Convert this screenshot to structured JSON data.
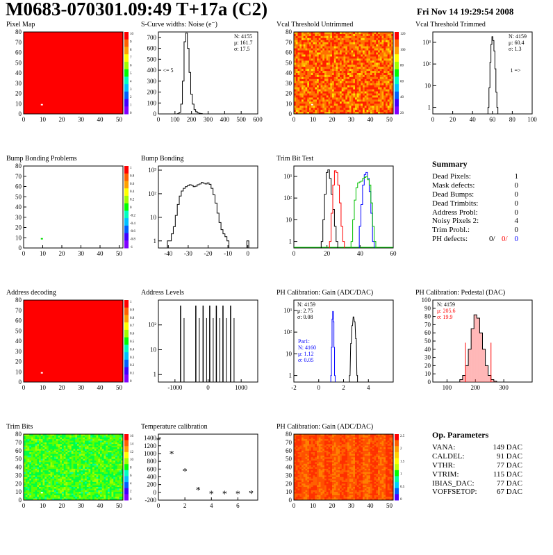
{
  "header": {
    "title": "M0683-070301.09:49 T+17a (C2)",
    "date": "Fri Nov 14 19:29:54 2008"
  },
  "colors": {
    "map_red": "#ff0000",
    "grid_green": "#00dd00",
    "hist_red": "#ff0000",
    "hist_blue": "#0000ff",
    "fill_red": "#ff6060"
  },
  "palette_ticks": {
    "p1": [
      "10",
      "9",
      "8",
      "7",
      "6",
      "5",
      "4",
      "3",
      "2",
      "1",
      "0"
    ],
    "p3": [
      "120",
      "100",
      "80",
      "60",
      "40",
      "20"
    ],
    "p5": [
      "1",
      "0.8",
      "0.6",
      "0.4",
      "0.2",
      "0",
      "-0.2",
      "-0.4",
      "-0.6",
      "-0.8",
      "-1"
    ],
    "p9": [
      "1",
      "0.9",
      "0.8",
      "0.7",
      "0.6",
      "0.5",
      "0.4",
      "0.3",
      "0.2",
      "0.1",
      "0"
    ],
    "p13": [
      "16",
      "14",
      "12",
      "10",
      "8",
      "6",
      "4",
      "2",
      "0"
    ],
    "p15": [
      "2.5",
      "2",
      "1.5",
      "1",
      "0.5",
      "0"
    ]
  },
  "summary": {
    "title": "Summary",
    "rows": [
      {
        "label": "Dead Pixels:",
        "value": "1"
      },
      {
        "label": "Mask defects:",
        "value": "0"
      },
      {
        "label": "Dead Bumps:",
        "value": "0"
      },
      {
        "label": "Dead Trimbits:",
        "value": "0"
      },
      {
        "label": "Address Probl:",
        "value": "0"
      },
      {
        "label": "Noisy Pixels 2:",
        "value": "4"
      },
      {
        "label": "Trim Probl.:",
        "value": "0"
      }
    ],
    "ph": {
      "label": "PH defects:",
      "v1": "0/",
      "v2": "0/",
      "v3": "0"
    }
  },
  "op_params": {
    "title": "Op. Parameters",
    "rows": [
      {
        "label": "VANA:",
        "value": "149 DAC"
      },
      {
        "label": "CALDEL:",
        "value": "91 DAC"
      },
      {
        "label": "VTHR:",
        "value": "77 DAC"
      },
      {
        "label": "VTRIM:",
        "value": "115 DAC"
      },
      {
        "label": "IBIAS_DAC:",
        "value": "77 DAC"
      },
      {
        "label": "VOFFSETOP:",
        "value": "67 DAC"
      }
    ]
  },
  "chart_data": [
    {
      "id": "p1",
      "type": "heatmap",
      "title": "Pixel Map",
      "xlim": [
        0,
        52
      ],
      "ylim": [
        0,
        80
      ],
      "xticks": [
        0,
        10,
        20,
        30,
        40,
        50
      ],
      "yticks": [
        0,
        10,
        20,
        30,
        40,
        50,
        60,
        70,
        80
      ],
      "zlim": [
        0,
        10
      ],
      "fill": "uniform-red",
      "value": 10,
      "marks": [
        {
          "x": 9,
          "y": 9,
          "value": 0
        }
      ]
    },
    {
      "id": "p2",
      "type": "line",
      "title": "S-Curve widths: Noise (e⁻)",
      "xlim": [
        0,
        600
      ],
      "ylim": [
        0,
        750
      ],
      "xticks": [
        0,
        100,
        200,
        300,
        400,
        500,
        600
      ],
      "yticks": [
        0,
        100,
        200,
        300,
        400,
        500,
        600,
        700
      ],
      "x": [
        120,
        130,
        140,
        150,
        160,
        170,
        180,
        190,
        200,
        210,
        220,
        230,
        240,
        250,
        260
      ],
      "y": [
        2,
        15,
        90,
        300,
        660,
        740,
        600,
        380,
        180,
        90,
        40,
        20,
        10,
        5,
        3
      ],
      "stats": {
        "N": "4155",
        "mu": "161.7",
        "sigma": "17.5"
      },
      "note": "<= 5"
    },
    {
      "id": "p3",
      "type": "heatmap",
      "title": "Vcal Threshold Untrimmed",
      "xlim": [
        0,
        52
      ],
      "ylim": [
        0,
        80
      ],
      "xticks": [
        0,
        10,
        20,
        30,
        40,
        50
      ],
      "yticks": [
        0,
        10,
        20,
        30,
        40,
        50,
        60,
        70,
        80
      ],
      "zlim": [
        0,
        130
      ],
      "fill": "noise-orange",
      "marks": [
        {
          "x": 9,
          "y": 9,
          "value": 0
        }
      ]
    },
    {
      "id": "p4",
      "type": "line",
      "title": "Vcal Threshold Trimmed",
      "xlim": [
        0,
        100
      ],
      "ylim": "log",
      "yticks_log": [
        1,
        10,
        100,
        1000
      ],
      "xticks": [
        0,
        20,
        40,
        60,
        80,
        100
      ],
      "x": [
        56,
        57,
        58,
        59,
        60,
        61,
        62,
        63,
        64,
        65
      ],
      "y": [
        1,
        8,
        120,
        800,
        1800,
        1200,
        400,
        60,
        5,
        1
      ],
      "stats": {
        "N": "4159",
        "mu": "60.4",
        "sigma": "1.3"
      },
      "note": "1 =>"
    },
    {
      "id": "p5",
      "type": "heatmap",
      "title": "Bump Bonding Problems",
      "xlim": [
        0,
        52
      ],
      "ylim": [
        0,
        80
      ],
      "xticks": [
        0,
        10,
        20,
        30,
        40,
        50
      ],
      "yticks": [
        0,
        10,
        20,
        30,
        40,
        50,
        60,
        70,
        80
      ],
      "zlim": [
        -1,
        1
      ],
      "fill": "empty",
      "marks": [
        {
          "x": 9,
          "y": 9,
          "value": 0
        }
      ]
    },
    {
      "id": "p6",
      "type": "line",
      "title": "Bump Bonding",
      "xlim": [
        -45,
        5
      ],
      "ylim": "log",
      "yticks_log": [
        1,
        10,
        100,
        1000
      ],
      "xticks": [
        -40,
        -30,
        -20,
        -10,
        0
      ],
      "x": [
        -40,
        -39,
        -38,
        -37,
        -36,
        -35,
        -34,
        -33,
        -32,
        -31,
        -30,
        -29,
        -28,
        -27,
        -26,
        -25,
        -24,
        -23,
        -22,
        -21,
        -20,
        -19,
        -18,
        -17,
        -16,
        -15,
        -14,
        -13,
        -12,
        -11,
        -10,
        -9,
        -8,
        -7,
        -6,
        -5,
        -4,
        -3,
        -2,
        -1,
        0,
        1
      ],
      "y": [
        1,
        1,
        2,
        4,
        12,
        35,
        80,
        130,
        170,
        200,
        220,
        240,
        230,
        200,
        210,
        240,
        260,
        300,
        280,
        260,
        290,
        250,
        170,
        90,
        40,
        15,
        6,
        3,
        2,
        1.5,
        1,
        0,
        0,
        0,
        0,
        0,
        0,
        0,
        0,
        0,
        1,
        0
      ]
    },
    {
      "id": "p7",
      "type": "line",
      "title": "Trim Bit Test",
      "xlim": [
        0,
        60
      ],
      "ylim": "log",
      "yticks_log": [
        1,
        10,
        100,
        1000
      ],
      "xticks": [
        0,
        20,
        40,
        60
      ],
      "series": [
        {
          "color": "#000000",
          "x": [
            17,
            18,
            19,
            20,
            21,
            22,
            23,
            24,
            25,
            26
          ],
          "y": [
            1,
            10,
            150,
            1500,
            2000,
            800,
            150,
            30,
            5,
            1
          ]
        },
        {
          "color": "#ff0000",
          "x": [
            22,
            23,
            24,
            25,
            26,
            27,
            28,
            29,
            30
          ],
          "y": [
            1,
            20,
            400,
            1800,
            1500,
            400,
            60,
            5,
            1
          ]
        },
        {
          "color": "#0000ff",
          "x": [
            40,
            41,
            42,
            43,
            44,
            45,
            46,
            47,
            48
          ],
          "y": [
            5,
            50,
            400,
            1200,
            1500,
            800,
            200,
            20,
            1
          ]
        },
        {
          "color": "#00c000",
          "x": [
            35,
            36,
            37,
            38,
            39,
            40,
            41,
            42,
            43,
            44,
            45,
            46,
            47,
            48,
            49
          ],
          "y": [
            1,
            10,
            80,
            300,
            500,
            550,
            600,
            800,
            900,
            1000,
            700,
            400,
            60,
            5,
            1
          ]
        }
      ]
    },
    {
      "id": "p9",
      "type": "heatmap",
      "title": "Address decoding",
      "xlim": [
        0,
        52
      ],
      "ylim": [
        0,
        80
      ],
      "xticks": [
        0,
        10,
        20,
        30,
        40,
        50
      ],
      "yticks": [
        0,
        10,
        20,
        30,
        40,
        50,
        60,
        70,
        80
      ],
      "zlim": [
        0,
        1
      ],
      "fill": "uniform-red",
      "value": 1,
      "marks": [
        {
          "x": 9,
          "y": 9,
          "value": 0
        }
      ]
    },
    {
      "id": "p10",
      "type": "line",
      "title": "Address Levels",
      "xlim": [
        -1500,
        1500
      ],
      "ylim": "log",
      "yticks_log": [
        1,
        10,
        100
      ],
      "xticks": [
        -1000,
        0,
        1000
      ],
      "x": [
        -830,
        -370,
        -150,
        50,
        250,
        450,
        680
      ],
      "y": [
        600,
        600,
        600,
        600,
        600,
        600,
        600
      ]
    },
    {
      "id": "p11",
      "type": "line",
      "title": "PH Calibration: Gain (ADC/DAC)",
      "xlim": [
        -2,
        6
      ],
      "ylim": "log",
      "yticks_log": [
        1,
        10,
        100,
        1000
      ],
      "xticks": [
        -2,
        0,
        2,
        4
      ],
      "series": [
        {
          "color": "#0000ff",
          "x": [
            1.0,
            1.05,
            1.1,
            1.15,
            1.2,
            1.25,
            1.3
          ],
          "y": [
            1,
            20,
            400,
            900,
            300,
            20,
            1
          ]
        },
        {
          "color": "#000000",
          "x": [
            2.5,
            2.6,
            2.7,
            2.8,
            2.9,
            3.0,
            3.1
          ],
          "y": [
            1,
            30,
            200,
            500,
            300,
            50,
            1
          ]
        }
      ],
      "stats": {
        "N": "4159",
        "mu": "2.75",
        "sigma": "0.08"
      },
      "stats2": {
        "label": "Par1:",
        "N": "4160",
        "mu": "1.12",
        "sigma": "0.05"
      }
    },
    {
      "id": "p12",
      "type": "line",
      "title": "PH Calibration: Pedestal (DAC)",
      "xlim": [
        50,
        400
      ],
      "ylim": [
        0,
        100
      ],
      "xticks": [
        100,
        200,
        300
      ],
      "yticks": [
        0,
        10,
        20,
        30,
        40,
        50,
        60,
        70,
        80,
        90,
        100
      ],
      "x": [
        150,
        160,
        170,
        180,
        190,
        200,
        210,
        220,
        230,
        240,
        250,
        260,
        270
      ],
      "y": [
        3,
        8,
        20,
        40,
        65,
        82,
        78,
        60,
        40,
        20,
        8,
        3,
        1
      ],
      "stats": {
        "N": "4159",
        "mu": "205.6",
        "sigma": "19.9"
      }
    },
    {
      "id": "p13",
      "type": "heatmap",
      "title": "Trim Bits",
      "xlim": [
        0,
        52
      ],
      "ylim": [
        0,
        80
      ],
      "xticks": [
        0,
        10,
        20,
        30,
        40,
        50
      ],
      "yticks": [
        0,
        10,
        20,
        30,
        40,
        50,
        60,
        70,
        80
      ],
      "zlim": [
        0,
        16
      ],
      "fill": "noise-green",
      "marks": [
        {
          "x": 9,
          "y": 9,
          "value": 0
        }
      ]
    },
    {
      "id": "p14",
      "type": "scatter",
      "title": "Temperature calibration",
      "xlim": [
        0,
        7.5
      ],
      "ylim": [
        -200,
        1500
      ],
      "xticks": [
        0,
        2,
        4,
        6
      ],
      "yticks": [
        -200,
        0,
        200,
        400,
        600,
        800,
        1000,
        1200,
        1400
      ],
      "x": [
        0,
        1,
        2,
        3,
        4,
        5,
        6,
        7
      ],
      "y": [
        1350,
        1000,
        550,
        70,
        -30,
        -30,
        -30,
        -20
      ]
    },
    {
      "id": "p15",
      "type": "heatmap",
      "title": "PH Calibration: Gain (ADC/DAC)",
      "xlim": [
        0,
        52
      ],
      "ylim": [
        0,
        80
      ],
      "xticks": [
        0,
        10,
        20,
        30,
        40,
        50
      ],
      "yticks": [
        0,
        10,
        20,
        30,
        40,
        50,
        60,
        70,
        80
      ],
      "zlim": [
        0,
        2.8
      ],
      "fill": "noise-red"
    }
  ]
}
